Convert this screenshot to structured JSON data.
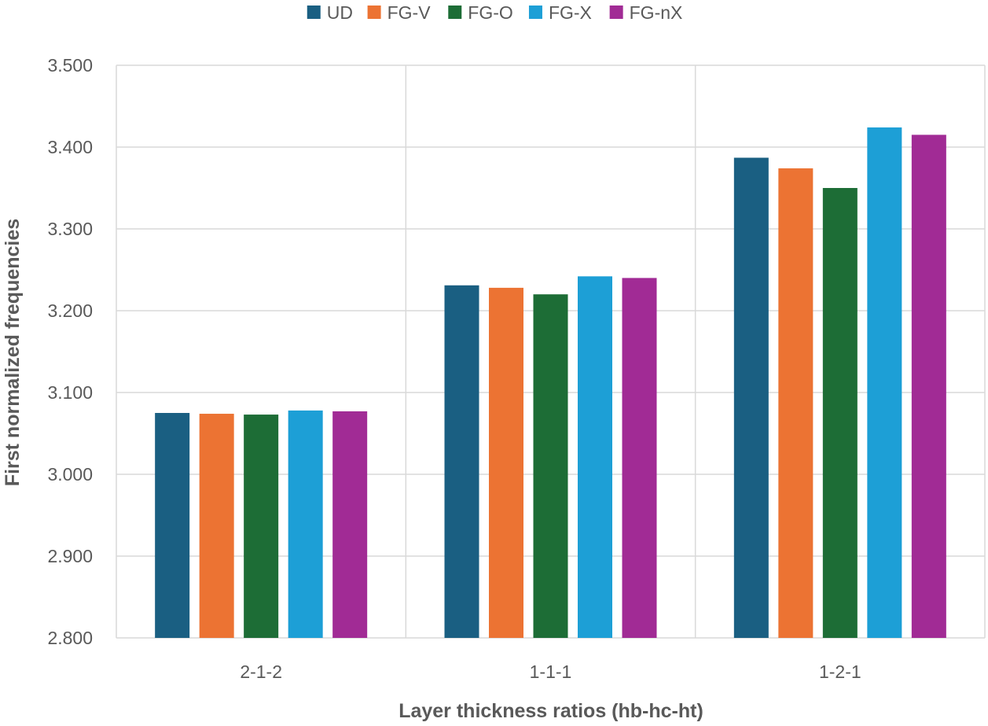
{
  "chart_data": {
    "type": "bar",
    "title": "",
    "xlabel": "Layer thickness ratios (hb-hc-ht)",
    "ylabel": "First normalized frequencies",
    "ylim": [
      2.8,
      3.5
    ],
    "yticks": [
      "2.800",
      "2.900",
      "3.000",
      "3.100",
      "3.200",
      "3.300",
      "3.400",
      "3.500"
    ],
    "categories": [
      "2-1-2",
      "1-1-1",
      "1-2-1"
    ],
    "grid": true,
    "legend_position": "top",
    "series": [
      {
        "name": "UD",
        "color": "#1a5f82",
        "values": [
          3.075,
          3.231,
          3.387
        ]
      },
      {
        "name": "FG-V",
        "color": "#ec7333",
        "values": [
          3.074,
          3.228,
          3.374
        ]
      },
      {
        "name": "FG-O",
        "color": "#1d6d36",
        "values": [
          3.073,
          3.22,
          3.35
        ]
      },
      {
        "name": "FG-X",
        "color": "#1d9fd6",
        "values": [
          3.078,
          3.242,
          3.424
        ]
      },
      {
        "name": "FG-nX",
        "color": "#a12b95",
        "values": [
          3.077,
          3.24,
          3.415
        ]
      }
    ]
  }
}
